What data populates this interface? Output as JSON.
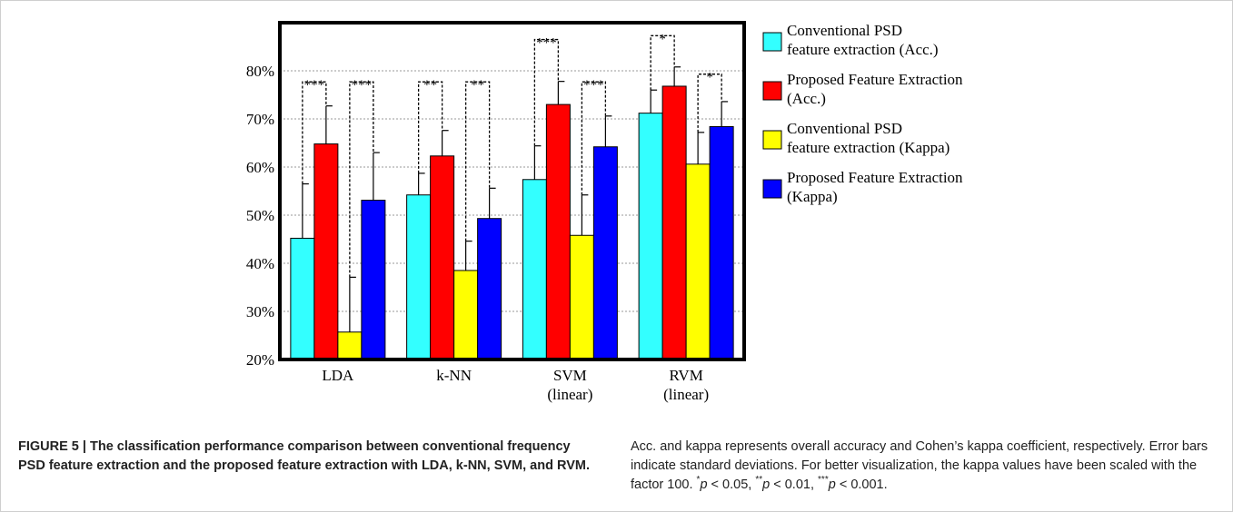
{
  "chart_data": {
    "type": "bar",
    "categories": [
      [
        "LDA"
      ],
      [
        "k-NN"
      ],
      [
        "SVM",
        "(linear)"
      ],
      [
        "RVM",
        "(linear)"
      ]
    ],
    "ylim": [
      20,
      90
    ],
    "yticks": [
      20,
      30,
      40,
      50,
      60,
      70,
      80
    ],
    "ytick_suffix": "%",
    "grid": true,
    "legend_position": "right",
    "series": [
      {
        "name": "Conventional PSD\nfeature extraction  (Acc.)",
        "color": "#33ffff",
        "values": [
          45.2,
          54.2,
          57.4,
          71.2
        ],
        "errors": [
          11.3,
          4.5,
          7.0,
          4.8
        ]
      },
      {
        "name": "Proposed Feature Extraction\n(Acc.)",
        "color": "#ff0000",
        "values": [
          64.8,
          62.3,
          73.0,
          76.8
        ],
        "errors": [
          7.9,
          5.3,
          4.8,
          4.0
        ]
      },
      {
        "name": "Conventional PSD\nfeature extraction (Kappa)",
        "color": "#ffff00",
        "values": [
          25.7,
          38.5,
          45.8,
          60.6
        ],
        "errors": [
          11.4,
          6.1,
          8.4,
          6.6
        ]
      },
      {
        "name": "Proposed Feature Extraction\n(Kappa)",
        "color": "#0000ff",
        "values": [
          53.1,
          49.3,
          64.2,
          68.4
        ],
        "errors": [
          9.9,
          6.3,
          6.4,
          5.2
        ]
      }
    ],
    "significance": [
      {
        "category": 0,
        "pair": [
          0,
          1
        ],
        "label": "***",
        "top": 77.7
      },
      {
        "category": 0,
        "pair": [
          2,
          3
        ],
        "label": "***",
        "top": 77.7
      },
      {
        "category": 1,
        "pair": [
          0,
          1
        ],
        "label": "**",
        "top": 77.7
      },
      {
        "category": 1,
        "pair": [
          2,
          3
        ],
        "label": "**",
        "top": 77.7
      },
      {
        "category": 2,
        "pair": [
          0,
          1
        ],
        "label": "***",
        "top": 86.5
      },
      {
        "category": 2,
        "pair": [
          2,
          3
        ],
        "label": "***",
        "top": 77.7
      },
      {
        "category": 3,
        "pair": [
          0,
          1
        ],
        "label": "*",
        "top": 87.3
      },
      {
        "category": 3,
        "pair": [
          2,
          3
        ],
        "label": "*",
        "top": 79.3
      }
    ]
  },
  "caption": {
    "title": "FIGURE 5 | The classification performance comparison between conventional frequency PSD feature extraction and the proposed feature extraction with LDA, k-NN, SVM, and RVM.",
    "text_1": "Acc. and kappa represents overall accuracy and Cohen’s kappa coefficient, respectively. Error bars indicate standard deviations. For better visualization, the kappa values have been scaled with the factor 100.",
    "star1": "*",
    "p1": "p",
    "t1": " < 0.05,",
    "star2": "**",
    "p2": "p",
    "t2": " < 0.01,",
    "star3": "***",
    "p3": "p",
    "t3": " < 0.001."
  }
}
